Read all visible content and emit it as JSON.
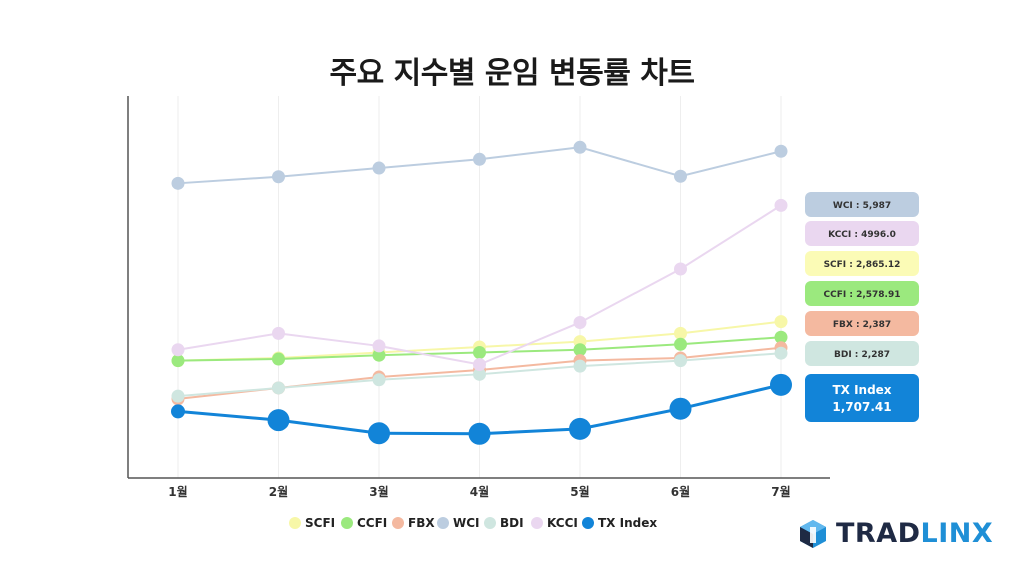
{
  "title": "주요 지수별 운임 변동률 차트",
  "chart_data": {
    "type": "line",
    "title": "주요 지수별 운임 변동률 차트",
    "categories": [
      "1월",
      "2월",
      "3월",
      "4월",
      "5월",
      "6월",
      "7월"
    ],
    "ylim": [
      0,
      7000
    ],
    "grid": "vertical",
    "legend_position": "bottom",
    "series": [
      {
        "name": "SCFI",
        "color": "#f7f7a8",
        "values": [
          2150,
          2200,
          2300,
          2400,
          2500,
          2650,
          2865.12
        ]
      },
      {
        "name": "CCFI",
        "color": "#9be97e",
        "values": [
          2150,
          2180,
          2250,
          2300,
          2350,
          2450,
          2578.91
        ]
      },
      {
        "name": "FBX",
        "color": "#f4b9a0",
        "values": [
          1450,
          1650,
          1850,
          1980,
          2150,
          2200,
          2387
        ]
      },
      {
        "name": "WCI",
        "color": "#bccde0",
        "values": [
          5400,
          5520,
          5680,
          5840,
          6060,
          5530,
          5987
        ]
      },
      {
        "name": "BDI",
        "color": "#cfe6e0",
        "values": [
          1500,
          1650,
          1800,
          1900,
          2050,
          2150,
          2287
        ]
      },
      {
        "name": "KCCI",
        "color": "#ead7f0",
        "values": [
          2350,
          2650,
          2420,
          2080,
          2850,
          3830,
          4996.0
        ]
      },
      {
        "name": "TX Index",
        "color": "#1284d8",
        "values": [
          1220,
          1060,
          820,
          810,
          900,
          1270,
          1707.41
        ]
      }
    ],
    "end_labels": [
      {
        "series": "WCI",
        "text": "WCI : 5,987",
        "bg": "#bccde0",
        "fg": "#333333"
      },
      {
        "series": "KCCI",
        "text": "KCCI : 4996.0",
        "bg": "#ead7f0",
        "fg": "#333333"
      },
      {
        "series": "SCFI",
        "text": "SCFI : 2,865.12",
        "bg": "#fbfbb6",
        "fg": "#333333"
      },
      {
        "series": "CCFI",
        "text": "CCFI : 2,578.91",
        "bg": "#9be97e",
        "fg": "#333333"
      },
      {
        "series": "FBX",
        "text": "FBX : 2,387",
        "bg": "#f4b9a0",
        "fg": "#333333"
      },
      {
        "series": "BDI",
        "text": "BDI : 2,287",
        "bg": "#cfe6e0",
        "fg": "#333333"
      },
      {
        "series": "TX Index",
        "text_line1": "TX Index",
        "text_line2": "1,707.41",
        "bg": "#1284d8",
        "fg": "#ffffff"
      }
    ]
  },
  "logo": {
    "part1": "TRAD",
    "part2": "LINX"
  }
}
